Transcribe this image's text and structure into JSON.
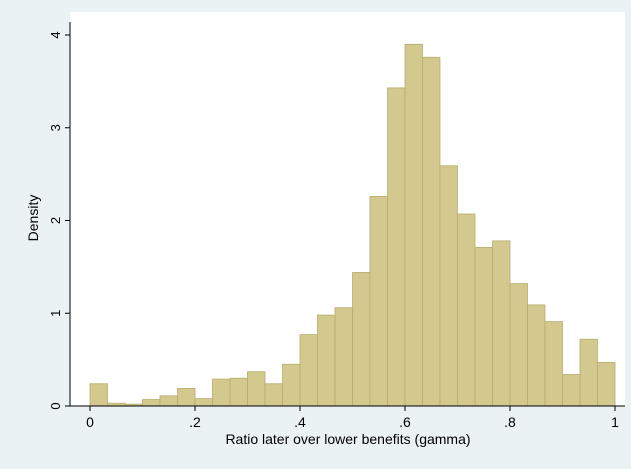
{
  "chart_data": {
    "type": "bar",
    "xlabel": "Ratio later over lower benefits (gamma)",
    "ylabel": "Density",
    "xlim": [
      0,
      1
    ],
    "ylim": [
      0,
      4
    ],
    "x_ticks": [
      {
        "value": 0,
        "label": "0"
      },
      {
        "value": 0.2,
        "label": ".2"
      },
      {
        "value": 0.4,
        "label": ".4"
      },
      {
        "value": 0.6,
        "label": ".6"
      },
      {
        "value": 0.8,
        "label": ".8"
      },
      {
        "value": 1,
        "label": "1"
      }
    ],
    "y_ticks": [
      {
        "value": 0,
        "label": "0"
      },
      {
        "value": 1,
        "label": "1"
      },
      {
        "value": 2,
        "label": "2"
      },
      {
        "value": 3,
        "label": "3"
      },
      {
        "value": 4,
        "label": "4"
      }
    ],
    "bin_width": 0.0333,
    "bins": [
      {
        "x0": 0.0,
        "value": 0.24
      },
      {
        "x0": 0.0333,
        "value": 0.03
      },
      {
        "x0": 0.0667,
        "value": 0.02
      },
      {
        "x0": 0.1,
        "value": 0.07
      },
      {
        "x0": 0.1333,
        "value": 0.11
      },
      {
        "x0": 0.1667,
        "value": 0.19
      },
      {
        "x0": 0.2,
        "value": 0.08
      },
      {
        "x0": 0.2333,
        "value": 0.29
      },
      {
        "x0": 0.2667,
        "value": 0.3
      },
      {
        "x0": 0.3,
        "value": 0.37
      },
      {
        "x0": 0.3333,
        "value": 0.24
      },
      {
        "x0": 0.3667,
        "value": 0.45
      },
      {
        "x0": 0.4,
        "value": 0.77
      },
      {
        "x0": 0.4333,
        "value": 0.98
      },
      {
        "x0": 0.4667,
        "value": 1.06
      },
      {
        "x0": 0.5,
        "value": 1.44
      },
      {
        "x0": 0.5333,
        "value": 2.26
      },
      {
        "x0": 0.5667,
        "value": 3.43
      },
      {
        "x0": 0.6,
        "value": 3.9
      },
      {
        "x0": 0.6333,
        "value": 3.76
      },
      {
        "x0": 0.6667,
        "value": 2.59
      },
      {
        "x0": 0.7,
        "value": 2.07
      },
      {
        "x0": 0.7333,
        "value": 1.71
      },
      {
        "x0": 0.7667,
        "value": 1.78
      },
      {
        "x0": 0.8,
        "value": 1.32
      },
      {
        "x0": 0.8333,
        "value": 1.09
      },
      {
        "x0": 0.8667,
        "value": 0.91
      },
      {
        "x0": 0.9,
        "value": 0.34
      },
      {
        "x0": 0.9333,
        "value": 0.72
      },
      {
        "x0": 0.9667,
        "value": 0.47
      }
    ],
    "colors": {
      "bar_fill": "#d3c88d",
      "bar_stroke": "#b8ad6e",
      "plot_background": "#ffffff",
      "outer_background": "#eaf2f3",
      "axis": "#000000"
    },
    "grid": false
  }
}
